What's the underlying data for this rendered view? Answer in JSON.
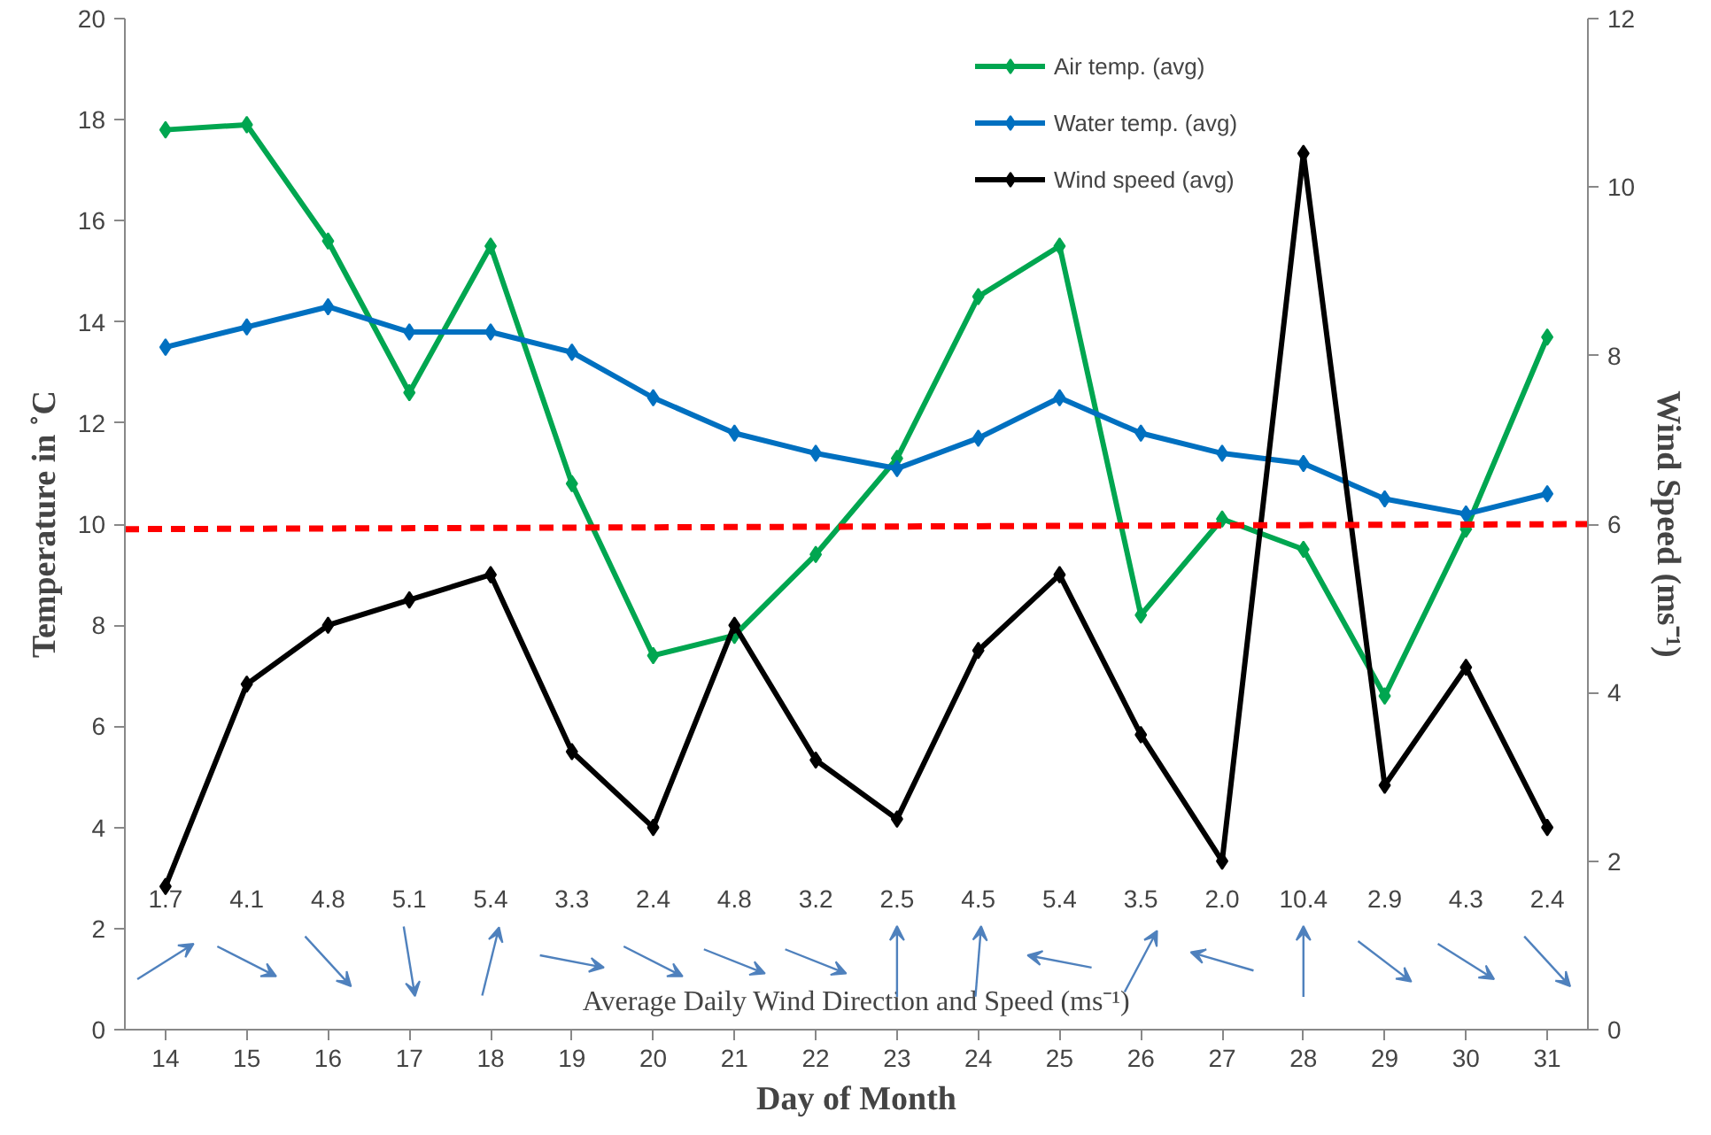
{
  "chart_data": {
    "type": "line",
    "xlabel": "Day of Month",
    "ylabel": "Temperature in ˚C",
    "y2label": "Wind Speed (ms⁻¹)",
    "x": [
      14,
      15,
      16,
      17,
      18,
      19,
      20,
      21,
      22,
      23,
      24,
      25,
      26,
      27,
      28,
      29,
      30,
      31
    ],
    "xlim": [
      13.5,
      31.5
    ],
    "xticks": [
      14,
      15,
      16,
      17,
      18,
      19,
      20,
      21,
      22,
      23,
      24,
      25,
      26,
      27,
      28,
      29,
      30,
      31
    ],
    "ylim": [
      0,
      20
    ],
    "yticks": [
      0,
      2,
      4,
      6,
      8,
      10,
      12,
      14,
      16,
      18,
      20
    ],
    "y2lim": [
      0,
      12
    ],
    "y2ticks": [
      0,
      2,
      4,
      6,
      8,
      10,
      12
    ],
    "series": [
      {
        "name": "Air temp. (avg)",
        "color": "#00a650",
        "values": [
          17.8,
          17.9,
          15.6,
          12.6,
          15.5,
          10.8,
          7.4,
          7.8,
          9.4,
          11.3,
          14.5,
          15.5,
          8.2,
          10.1,
          9.5,
          6.6,
          9.9,
          13.7
        ]
      },
      {
        "name": "Water temp. (avg)",
        "color": "#0070c0",
        "values": [
          13.5,
          13.9,
          14.3,
          13.8,
          13.8,
          13.4,
          12.5,
          11.8,
          11.4,
          11.1,
          11.7,
          12.5,
          11.8,
          11.4,
          11.2,
          10.5,
          10.2,
          10.6
        ]
      },
      {
        "name": "Wind speed (avg)",
        "color": "#000000",
        "axis": "y2",
        "values": [
          1.7,
          4.1,
          4.8,
          5.1,
          5.4,
          3.3,
          2.4,
          4.8,
          3.2,
          2.5,
          4.5,
          5.4,
          3.5,
          2.0,
          10.4,
          2.9,
          4.3,
          2.4
        ]
      },
      {
        "type": "line",
        "color": "#ff0000",
        "line_style": "dashed",
        "marker": "none",
        "x": [
          13.5,
          31.5
        ],
        "values": [
          9.9,
          10.0
        ]
      }
    ],
    "marker": "diamond",
    "line_style": "solid",
    "grid": false,
    "legend": "top",
    "annotations": [
      "Average Daily Wind Direction and Speed (ms⁻¹)",
      "1.7",
      "4.1",
      "4.8",
      "5.1",
      "5.4",
      "3.3",
      "2.4",
      "4.8",
      "3.2",
      "2.5",
      "4.5",
      "5.4",
      "3.5",
      "2.0",
      "10.4",
      "2.9",
      "4.3",
      "2.4"
    ]
  }
}
